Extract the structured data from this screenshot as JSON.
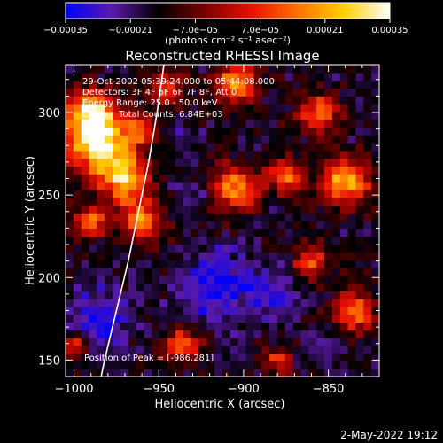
{
  "chart_data": {
    "type": "heatmap",
    "title": "Reconstructed RHESSI Image",
    "xlabel": "Heliocentric X (arcsec)",
    "ylabel": "Heliocentric Y (arcsec)",
    "xlim": [
      -1005,
      -820
    ],
    "ylim": [
      140,
      329
    ],
    "x_ticks": [
      -1000,
      -950,
      -900,
      -850
    ],
    "x_tick_labels": [
      "−1000",
      "−950",
      "−900",
      "−850"
    ],
    "y_ticks": [
      150,
      200,
      250,
      300
    ],
    "y_tick_labels": [
      "150",
      "200",
      "250",
      "300"
    ],
    "colorbar": {
      "range": [
        -0.00035,
        0.00035
      ],
      "ticks": [
        -0.00035,
        -0.00021,
        -7e-05,
        7e-05,
        0.00021,
        0.00035
      ],
      "tick_labels": [
        "−0.00035",
        "−0.00021",
        "−7.0e−05",
        "7.0e−05",
        "0.00021",
        "0.00035"
      ],
      "unit_label": "(photons cm⁻² s⁻¹ asec⁻²)",
      "colors": [
        "#0000ff",
        "#5a1aa8",
        "#000000",
        "#7a0000",
        "#e81000",
        "#ff7000",
        "#ffd000",
        "#ffffff"
      ]
    },
    "annotations": [
      "29-Oct-2002 05:39:24.000 to 05:44:08.000",
      "Detectors: 3F 4F 5F 6F 7F 8F, Att 0",
      "Energy Range: 25.0 - 50.0 keV",
      "Clean    Total Counts: 6.84E+03"
    ],
    "peak_label": "Position of Peak = [-986,281]",
    "peak": [
      -986,
      281
    ],
    "limb": [
      [
        -947,
        329
      ],
      [
        -951,
        300
      ],
      [
        -956,
        270
      ],
      [
        -962,
        240
      ],
      [
        -968,
        210
      ],
      [
        -975,
        180
      ],
      [
        -982,
        150
      ],
      [
        -984,
        140
      ]
    ],
    "grid_shape": [
      40,
      40
    ],
    "hotspots": [
      {
        "x": -986,
        "y": 281,
        "r": 18,
        "v": 0.00035
      },
      {
        "x": -990,
        "y": 300,
        "r": 14,
        "v": 0.00028
      },
      {
        "x": -970,
        "y": 260,
        "r": 14,
        "v": 0.00026
      },
      {
        "x": -960,
        "y": 235,
        "r": 12,
        "v": 0.00022
      },
      {
        "x": -990,
        "y": 235,
        "r": 10,
        "v": 0.00018
      },
      {
        "x": -945,
        "y": 315,
        "r": 10,
        "v": 0.00016
      },
      {
        "x": -905,
        "y": 318,
        "r": 12,
        "v": 0.00024
      },
      {
        "x": -905,
        "y": 255,
        "r": 14,
        "v": 0.00022
      },
      {
        "x": -875,
        "y": 262,
        "r": 10,
        "v": 0.0002
      },
      {
        "x": -840,
        "y": 258,
        "r": 14,
        "v": 0.00026
      },
      {
        "x": -855,
        "y": 300,
        "r": 12,
        "v": 0.00018
      },
      {
        "x": -835,
        "y": 180,
        "r": 12,
        "v": 0.0002
      },
      {
        "x": -860,
        "y": 210,
        "r": 10,
        "v": 0.00016
      },
      {
        "x": -935,
        "y": 160,
        "r": 10,
        "v": 0.00016
      },
      {
        "x": -880,
        "y": 150,
        "r": 8,
        "v": 0.00012
      },
      {
        "x": -1000,
        "y": 160,
        "r": 8,
        "v": 0.00012
      },
      {
        "x": -960,
        "y": 290,
        "r": 10,
        "v": 0.00015
      }
    ],
    "coldspots": [
      {
        "x": -915,
        "y": 195,
        "r": 22,
        "v": -0.0003
      },
      {
        "x": -985,
        "y": 175,
        "r": 18,
        "v": -0.00028
      },
      {
        "x": -880,
        "y": 190,
        "r": 14,
        "v": -0.00024
      },
      {
        "x": -930,
        "y": 250,
        "r": 10,
        "v": -0.00022
      },
      {
        "x": -940,
        "y": 290,
        "r": 10,
        "v": -0.0002
      },
      {
        "x": -850,
        "y": 160,
        "r": 10,
        "v": -0.0002
      }
    ],
    "noise_seed": 20021029
  },
  "footer": {
    "timestamp": "2-May-2022 19:12"
  }
}
